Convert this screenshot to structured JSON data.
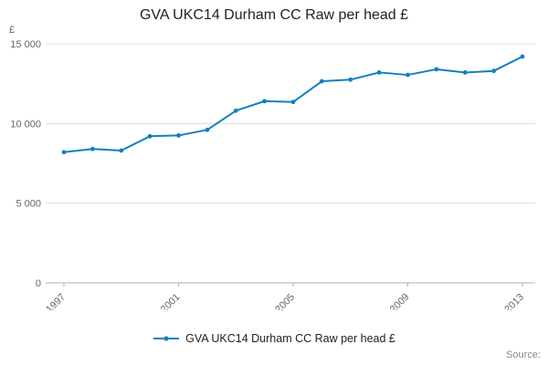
{
  "title": "GVA UKC14 Durham CC Raw per head £",
  "y_unit_label": "£",
  "legend": {
    "label": "GVA UKC14 Durham CC Raw per head £"
  },
  "source": "Source:",
  "colors": {
    "line": "#1380be",
    "grid": "#dcdcdc",
    "axis": "#b0b0b0",
    "tick_text": "#666666",
    "title_text": "#222222"
  },
  "chart_data": {
    "type": "line",
    "title": "GVA UKC14 Durham CC Raw per head £",
    "xlabel": "",
    "ylabel": "£",
    "x": [
      1997,
      1998,
      1999,
      2000,
      2001,
      2002,
      2003,
      2004,
      2005,
      2006,
      2007,
      2008,
      2009,
      2010,
      2011,
      2012,
      2013
    ],
    "series": [
      {
        "name": "GVA UKC14 Durham CC Raw per head £",
        "values": [
          8200,
          8400,
          8300,
          9200,
          9250,
          9600,
          10800,
          11400,
          11350,
          12650,
          12750,
          13200,
          13050,
          13400,
          13200,
          13300,
          14200
        ]
      }
    ],
    "ylim": [
      0,
      15000
    ],
    "yticks": [
      0,
      5000,
      10000,
      15000
    ],
    "ytick_labels": [
      "0",
      "5 000",
      "10 000",
      "15 000"
    ],
    "xticks": [
      1997,
      2001,
      2005,
      2009,
      2013
    ],
    "grid": true,
    "legend_position": "bottom"
  }
}
